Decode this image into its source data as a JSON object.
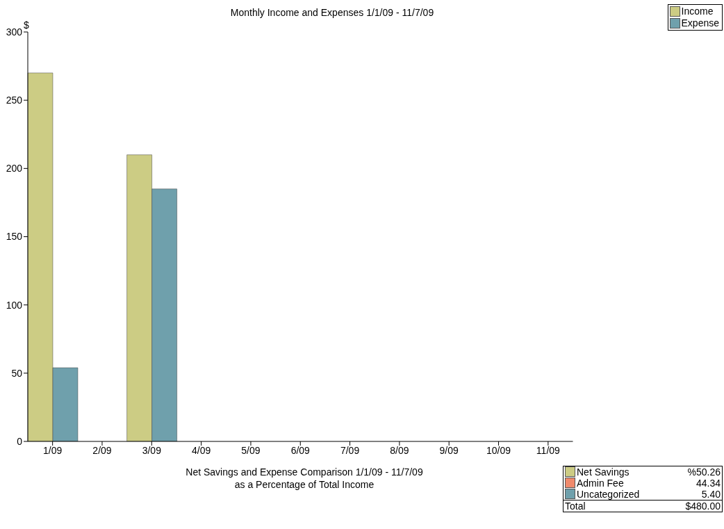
{
  "chart_data": [
    {
      "type": "bar",
      "title": "Monthly Income and Expenses  1/1/09 - 11/7/09",
      "ylabel": "$",
      "categories": [
        "1/09",
        "2/09",
        "3/09",
        "4/09",
        "5/09",
        "6/09",
        "7/09",
        "8/09",
        "9/09",
        "10/09",
        "11/09"
      ],
      "series": [
        {
          "name": "Income",
          "color": "#cccc84",
          "values": [
            270,
            0,
            210,
            0,
            0,
            0,
            0,
            0,
            0,
            0,
            0
          ]
        },
        {
          "name": "Expense",
          "color": "#6fa0ac",
          "values": [
            54,
            0,
            185,
            0,
            0,
            0,
            0,
            0,
            0,
            0,
            0
          ]
        }
      ],
      "ylim": [
        0,
        300
      ],
      "yticks": [
        0,
        50,
        100,
        150,
        200,
        250,
        300
      ],
      "legend": "top right"
    },
    {
      "type": "other",
      "title": "Net Savings and Expense Comparison  1/1/09 - 11/7/09",
      "subtitle": "as a Percentage of Total Income",
      "categories": [
        "Net Savings",
        "Admin Fee",
        "Uncategorized"
      ],
      "value_labels": [
        "%50.26",
        "44.34",
        "5.40"
      ],
      "colors": [
        "#cccc84",
        "#f08a6c",
        "#6fa0ac"
      ],
      "annotations": [
        "Total",
        "$480.00"
      ]
    }
  ]
}
